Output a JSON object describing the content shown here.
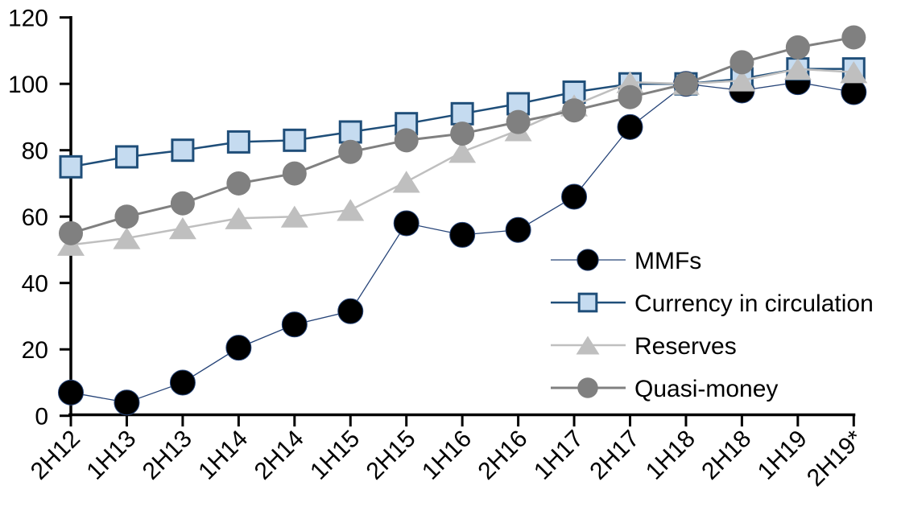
{
  "chart_data": {
    "type": "line",
    "title": "",
    "xlabel": "",
    "ylabel": "",
    "grid": false,
    "legend_position": "inside-right",
    "ylim": [
      0,
      120
    ],
    "yticks": [
      0,
      20,
      40,
      60,
      80,
      100,
      120
    ],
    "categories": [
      "2H12",
      "1H13",
      "2H13",
      "1H14",
      "2H14",
      "1H15",
      "2H15",
      "1H16",
      "2H16",
      "1H17",
      "2H17",
      "1H18",
      "2H18",
      "1H19",
      "2H19*"
    ],
    "series": [
      {
        "name": "MMFs",
        "marker": "circle",
        "marker_fill": "#000000",
        "marker_stroke": "#264478",
        "marker_stroke_width": 1,
        "marker_size": 31,
        "line_color": "#264478",
        "line_width": 1.3,
        "values": [
          7,
          4,
          10,
          20.5,
          27.5,
          31.5,
          58,
          54.5,
          56,
          66,
          87,
          100,
          98,
          100.5,
          97.5
        ]
      },
      {
        "name": "Currency in circulation",
        "marker": "square",
        "marker_fill": "#C5DBF0",
        "marker_stroke": "#1F4E79",
        "marker_stroke_width": 3,
        "marker_size": 29,
        "line_color": "#1F4E79",
        "line_width": 2.5,
        "values": [
          75,
          78,
          80,
          82.5,
          83,
          85.5,
          88,
          91,
          94,
          97.5,
          100,
          100,
          101.5,
          104.5,
          104.5
        ]
      },
      {
        "name": "Reserves",
        "marker": "triangle",
        "marker_fill": "#BFBFBF",
        "marker_stroke": "none",
        "marker_stroke_width": 0,
        "marker_size": 34,
        "line_color": "#BFBFBF",
        "line_width": 2.5,
        "values": [
          51.5,
          53.5,
          56.5,
          59.5,
          60,
          62,
          70.5,
          79.5,
          86,
          93.5,
          100.5,
          100,
          101,
          104.5,
          103.5
        ]
      },
      {
        "name": "Quasi-money",
        "marker": "circle",
        "marker_fill": "#808080",
        "marker_stroke": "none",
        "marker_stroke_width": 0,
        "marker_size": 30,
        "line_color": "#808080",
        "line_width": 3,
        "values": [
          55,
          60,
          64,
          70,
          73,
          79.5,
          83,
          85,
          88.5,
          92,
          96,
          100,
          106.5,
          111,
          114
        ]
      }
    ],
    "axis_color": "#000000"
  }
}
